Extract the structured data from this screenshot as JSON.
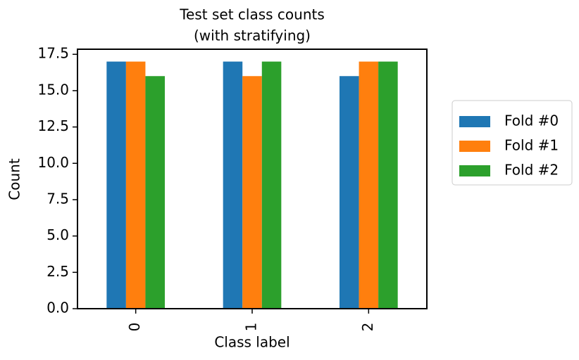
{
  "chart_data": {
    "type": "bar",
    "title": [
      "Test set class counts",
      "(with stratifying)"
    ],
    "x_label": "Class label",
    "y_label": "Count",
    "categories": [
      "0",
      "1",
      "2"
    ],
    "series": [
      {
        "name": "Fold #0",
        "color": "#1f77b4",
        "values": [
          17,
          17,
          16
        ]
      },
      {
        "name": "Fold #1",
        "color": "#ff7f0e",
        "values": [
          17,
          16,
          17
        ]
      },
      {
        "name": "Fold #2",
        "color": "#2ca02c",
        "values": [
          16,
          17,
          17
        ]
      }
    ],
    "ylim": [
      0,
      17.85
    ],
    "yticks": [
      {
        "value": 0,
        "label": "0.0"
      },
      2.5,
      {
        "value": 5,
        "label": "5.0"
      },
      7.5,
      {
        "value": 10,
        "label": "10.0"
      },
      12.5,
      {
        "value": 15,
        "label": "15.0"
      },
      17.5
    ],
    "grid": false,
    "legend": "outside-right"
  }
}
